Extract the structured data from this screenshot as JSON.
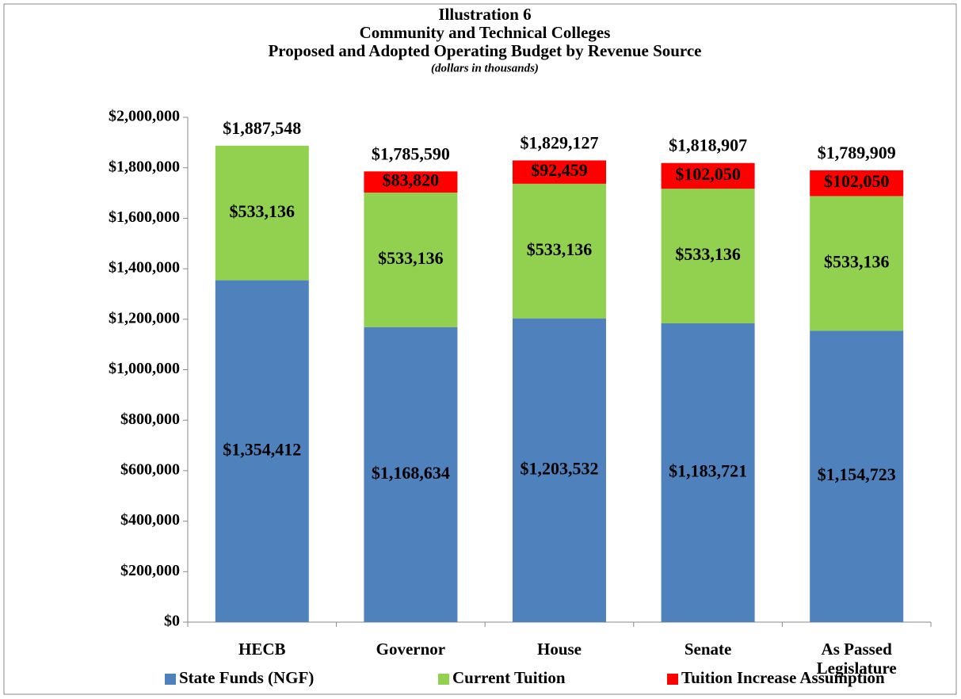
{
  "chart_data": {
    "type": "stacked-bar",
    "title": [
      "Illustration 6",
      "Community and Technical Colleges",
      "Proposed and Adopted Operating Budget by Revenue Source"
    ],
    "subtitle": "(dollars in thousands)",
    "categories": [
      "HECB",
      "Governor",
      "House",
      "Senate",
      "As Passed Legislature"
    ],
    "series": [
      {
        "name": "State Funds (NGF)",
        "color": "#4f81bd",
        "values": [
          1354412,
          1168634,
          1203532,
          1183721,
          1154723
        ],
        "value_labels": [
          "$1,354,412",
          "$1,168,634",
          "$1,203,532",
          "$1,183,721",
          "$1,154,723"
        ]
      },
      {
        "name": "Current Tuition",
        "color": "#92d050",
        "values": [
          533136,
          533136,
          533136,
          533136,
          533136
        ],
        "value_labels": [
          "$533,136",
          "$533,136",
          "$533,136",
          "$533,136",
          "$533,136"
        ]
      },
      {
        "name": "Tuition Increase Assumption",
        "color": "#ff0000",
        "values": [
          null,
          83820,
          92459,
          102050,
          102050
        ],
        "value_labels": [
          null,
          "$83,820",
          "$92,459",
          "$102,050",
          "$102,050"
        ]
      }
    ],
    "totals": {
      "values": [
        1887548,
        1785590,
        1829127,
        1818907,
        1789909
      ],
      "value_labels": [
        "$1,887,548",
        "$1,785,590",
        "$1,829,127",
        "$1,818,907",
        "$1,789,909"
      ]
    },
    "ylim": [
      0,
      2000000
    ],
    "yticks": [
      {
        "value": 0,
        "label": "$0"
      },
      {
        "value": 200000,
        "label": "$200,000"
      },
      {
        "value": 400000,
        "label": "$400,000"
      },
      {
        "value": 600000,
        "label": "$600,000"
      },
      {
        "value": 800000,
        "label": "$800,000"
      },
      {
        "value": 1000000,
        "label": "$1,000,000"
      },
      {
        "value": 1200000,
        "label": "$1,200,000"
      },
      {
        "value": 1400000,
        "label": "$1,400,000"
      },
      {
        "value": 1600000,
        "label": "$1,600,000"
      },
      {
        "value": 1800000,
        "label": "$1,800,000"
      },
      {
        "value": 2000000,
        "label": "$2,000,000"
      }
    ],
    "grid": false,
    "legend": "bottom"
  }
}
